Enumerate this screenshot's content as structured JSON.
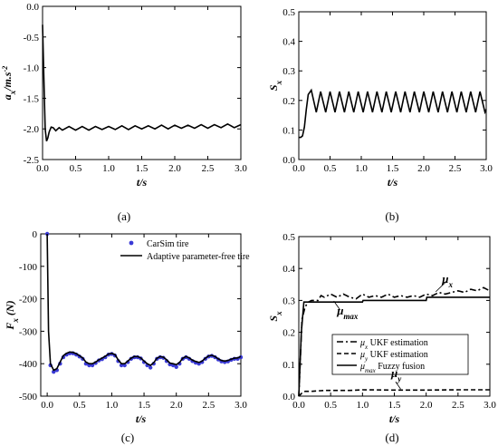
{
  "chart_data": [
    {
      "id": "a",
      "type": "line",
      "caption": "(a)",
      "xlabel": "t/s",
      "ylabel_main": "a",
      "ylabel_sub": "x",
      "ylabel_unit": "/m.s",
      "ylabel_sup": "-2",
      "xlim": [
        0.0,
        3.0
      ],
      "ylim": [
        -2.5,
        0.0
      ],
      "xticks": [
        "0.0",
        "0.5",
        "1.0",
        "1.5",
        "2.0",
        "2.5",
        "3.0"
      ],
      "yticks": [
        "0.0",
        "-0.5",
        "-1.0",
        "-1.5",
        "-2.0",
        "-2.5"
      ],
      "grid": false,
      "series": [
        {
          "style": "solid",
          "x": [
            0.0,
            0.02,
            0.04,
            0.06,
            0.08,
            0.1,
            0.13,
            0.16,
            0.2,
            0.25,
            0.3,
            0.4,
            0.5,
            0.6,
            0.7,
            0.8,
            0.9,
            1.0,
            1.1,
            1.2,
            1.3,
            1.4,
            1.5,
            1.6,
            1.7,
            1.8,
            1.9,
            2.0,
            2.1,
            2.2,
            2.3,
            2.4,
            2.5,
            2.6,
            2.7,
            2.8,
            2.9,
            3.0
          ],
          "y": [
            -0.3,
            -1.2,
            -2.0,
            -2.2,
            -2.15,
            -2.05,
            -1.97,
            -1.98,
            -2.03,
            -1.98,
            -2.02,
            -1.96,
            -2.02,
            -1.96,
            -2.02,
            -1.96,
            -2.01,
            -1.96,
            -2.01,
            -1.95,
            -2.01,
            -1.95,
            -2.0,
            -1.95,
            -2.0,
            -1.94,
            -2.0,
            -1.94,
            -1.99,
            -1.94,
            -1.99,
            -1.93,
            -1.99,
            -1.93,
            -1.98,
            -1.92,
            -1.98,
            -1.93
          ]
        }
      ]
    },
    {
      "id": "b",
      "type": "line",
      "caption": "(b)",
      "xlabel": "t/s",
      "ylabel_main": "S",
      "ylabel_sub": "x",
      "xlim": [
        0.0,
        3.0
      ],
      "ylim": [
        0.0,
        0.5
      ],
      "xticks": [
        "0.0",
        "0.5",
        "1.0",
        "1.5",
        "2.0",
        "2.5",
        "3.0"
      ],
      "yticks": [
        "0.0",
        "0.1",
        "0.2",
        "0.3",
        "0.4",
        "0.5"
      ],
      "grid": false,
      "series": [
        {
          "style": "solid",
          "x": [
            0.0,
            0.03,
            0.06,
            0.09,
            0.12,
            0.15,
            0.2,
            0.28,
            0.35,
            0.43,
            0.5,
            0.58,
            0.65,
            0.73,
            0.8,
            0.88,
            0.95,
            1.03,
            1.1,
            1.18,
            1.25,
            1.33,
            1.4,
            1.48,
            1.55,
            1.63,
            1.7,
            1.78,
            1.85,
            1.93,
            2.0,
            2.08,
            2.15,
            2.23,
            2.3,
            2.38,
            2.45,
            2.53,
            2.6,
            2.68,
            2.75,
            2.83,
            2.9,
            2.98,
            3.0
          ],
          "y": [
            0.075,
            0.075,
            0.08,
            0.11,
            0.17,
            0.22,
            0.235,
            0.16,
            0.23,
            0.16,
            0.23,
            0.16,
            0.23,
            0.16,
            0.23,
            0.16,
            0.23,
            0.16,
            0.23,
            0.16,
            0.23,
            0.16,
            0.23,
            0.16,
            0.23,
            0.16,
            0.23,
            0.16,
            0.23,
            0.16,
            0.23,
            0.16,
            0.23,
            0.16,
            0.23,
            0.16,
            0.23,
            0.16,
            0.23,
            0.16,
            0.23,
            0.16,
            0.23,
            0.16,
            0.17
          ]
        }
      ]
    },
    {
      "id": "c",
      "type": "line",
      "caption": "(c)",
      "xlabel": "t/s",
      "ylabel_main": "F",
      "ylabel_sub": "x",
      "ylabel_unit": " (N)",
      "xlim": [
        -0.1,
        3.0
      ],
      "ylim": [
        -500,
        0
      ],
      "xticks": [
        "0.0",
        "0.5",
        "1.0",
        "1.5",
        "2.0",
        "2.5",
        "3.0"
      ],
      "yticks": [
        "0",
        "-100",
        "-200",
        "-300",
        "-400",
        "-500"
      ],
      "grid": false,
      "legend_position": "top-right",
      "series": [
        {
          "name": "CarSim tire",
          "style": "dots",
          "color": "#3a3ad6",
          "x": [
            0.0,
            0.05,
            0.1,
            0.15,
            0.2,
            0.25,
            0.3,
            0.35,
            0.4,
            0.45,
            0.5,
            0.55,
            0.6,
            0.65,
            0.7,
            0.75,
            0.8,
            0.85,
            0.9,
            0.95,
            1.0,
            1.05,
            1.1,
            1.15,
            1.2,
            1.25,
            1.3,
            1.35,
            1.4,
            1.45,
            1.5,
            1.55,
            1.6,
            1.65,
            1.7,
            1.75,
            1.8,
            1.85,
            1.9,
            1.95,
            2.0,
            2.05,
            2.1,
            2.15,
            2.2,
            2.25,
            2.3,
            2.35,
            2.4,
            2.45,
            2.5,
            2.55,
            2.6,
            2.65,
            2.7,
            2.75,
            2.8,
            2.85,
            2.9,
            2.95,
            3.0
          ],
          "y": [
            0,
            -405,
            -425,
            -420,
            -400,
            -380,
            -372,
            -368,
            -368,
            -372,
            -378,
            -385,
            -400,
            -405,
            -405,
            -398,
            -390,
            -386,
            -380,
            -372,
            -370,
            -375,
            -392,
            -405,
            -405,
            -395,
            -385,
            -380,
            -380,
            -384,
            -395,
            -405,
            -412,
            -400,
            -385,
            -380,
            -382,
            -392,
            -402,
            -405,
            -410,
            -400,
            -385,
            -380,
            -385,
            -392,
            -397,
            -400,
            -395,
            -385,
            -378,
            -376,
            -380,
            -387,
            -393,
            -395,
            -393,
            -388,
            -385,
            -385,
            -380
          ]
        },
        {
          "name": "Adaptive parameter-free tire",
          "style": "solid",
          "color": "#000000",
          "x": [
            0.0,
            0.02,
            0.05,
            0.1,
            0.15,
            0.2,
            0.25,
            0.3,
            0.35,
            0.4,
            0.45,
            0.5,
            0.55,
            0.6,
            0.65,
            0.7,
            0.75,
            0.8,
            0.85,
            0.9,
            0.95,
            1.0,
            1.05,
            1.1,
            1.15,
            1.2,
            1.25,
            1.3,
            1.35,
            1.4,
            1.45,
            1.5,
            1.55,
            1.6,
            1.65,
            1.7,
            1.75,
            1.8,
            1.85,
            1.9,
            1.95,
            2.0,
            2.05,
            2.1,
            2.15,
            2.2,
            2.25,
            2.3,
            2.35,
            2.4,
            2.45,
            2.5,
            2.55,
            2.6,
            2.65,
            2.7,
            2.75,
            2.8,
            2.85,
            2.9,
            2.95,
            3.0
          ],
          "y": [
            0,
            -300,
            -400,
            -420,
            -415,
            -395,
            -375,
            -368,
            -364,
            -365,
            -369,
            -375,
            -382,
            -395,
            -400,
            -400,
            -395,
            -388,
            -383,
            -377,
            -370,
            -368,
            -372,
            -388,
            -400,
            -400,
            -392,
            -383,
            -378,
            -378,
            -382,
            -392,
            -400,
            -405,
            -397,
            -383,
            -378,
            -380,
            -388,
            -398,
            -400,
            -403,
            -396,
            -383,
            -378,
            -382,
            -389,
            -393,
            -396,
            -392,
            -383,
            -376,
            -374,
            -378,
            -385,
            -390,
            -392,
            -390,
            -386,
            -383,
            -382,
            -378
          ]
        }
      ]
    },
    {
      "id": "d",
      "type": "line",
      "caption": "(d)",
      "xlabel": "t/s",
      "ylabel_main": "S",
      "ylabel_sub": "x",
      "xlim": [
        0.0,
        3.0
      ],
      "ylim": [
        0.0,
        0.5
      ],
      "xticks": [
        "0.0",
        "0.5",
        "1.0",
        "1.5",
        "2.0",
        "2.5",
        "3.0"
      ],
      "yticks": [
        "0.0",
        "0.1",
        "0.2",
        "0.3",
        "0.4",
        "0.5"
      ],
      "grid": false,
      "legend_position": "center-right",
      "annotations": [
        {
          "main": "μ",
          "sub": "x",
          "x": 2.25,
          "y": 0.355
        },
        {
          "main": "μ",
          "sub": "max",
          "x": 0.6,
          "y": 0.255
        },
        {
          "main": "μ",
          "sub": "y",
          "x": 1.45,
          "y": 0.06
        }
      ],
      "series": [
        {
          "name_main": "μ",
          "name_sub": "x",
          "name_rest": "UKF estimation",
          "style": "dashdot",
          "x": [
            0.0,
            0.05,
            0.1,
            0.15,
            0.2,
            0.3,
            0.35,
            0.4,
            0.5,
            0.6,
            0.7,
            0.8,
            0.9,
            1.0,
            1.1,
            1.2,
            1.3,
            1.4,
            1.5,
            1.6,
            1.7,
            1.8,
            1.9,
            2.0,
            2.1,
            2.2,
            2.3,
            2.4,
            2.5,
            2.6,
            2.7,
            2.8,
            2.9,
            3.0
          ],
          "y": [
            0.0,
            0.24,
            0.28,
            0.295,
            0.3,
            0.3,
            0.315,
            0.31,
            0.32,
            0.31,
            0.32,
            0.31,
            0.305,
            0.32,
            0.31,
            0.315,
            0.31,
            0.32,
            0.31,
            0.315,
            0.31,
            0.315,
            0.31,
            0.32,
            0.315,
            0.325,
            0.32,
            0.325,
            0.33,
            0.325,
            0.335,
            0.33,
            0.34,
            0.33
          ]
        },
        {
          "name_main": "μ",
          "name_sub": "y",
          "name_rest": "UKF estimation",
          "style": "dashed",
          "x": [
            0.0,
            0.05,
            0.1,
            0.2,
            0.4,
            0.8,
            1.0,
            1.5,
            2.0,
            2.5,
            3.0
          ],
          "y": [
            0.0,
            0.01,
            0.015,
            0.015,
            0.018,
            0.018,
            0.02,
            0.019,
            0.019,
            0.02,
            0.02
          ]
        },
        {
          "name_main": "μ",
          "name_sub": "max",
          "name_rest": "Fuzzy fusion",
          "style": "solid",
          "x": [
            0.0,
            0.04,
            0.08,
            0.1,
            1.0,
            1.01,
            2.0,
            2.01,
            3.0
          ],
          "y": [
            0.0,
            0.2,
            0.295,
            0.295,
            0.295,
            0.3,
            0.3,
            0.31,
            0.31
          ]
        }
      ]
    }
  ]
}
